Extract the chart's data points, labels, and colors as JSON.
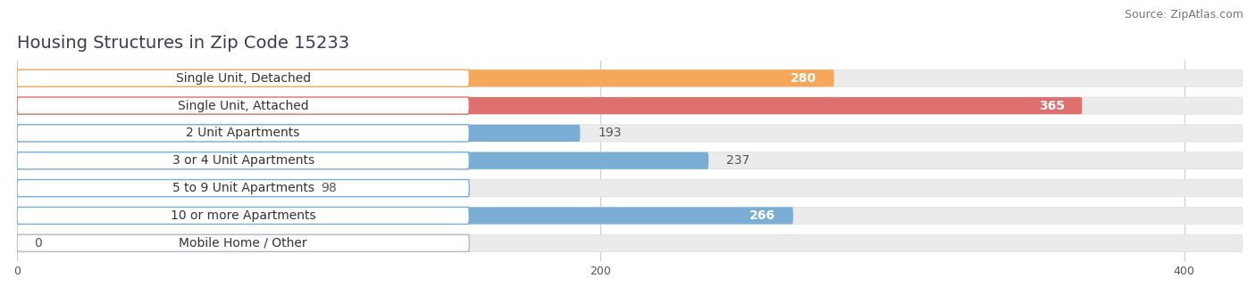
{
  "title": "Housing Structures in Zip Code 15233",
  "source": "Source: ZipAtlas.com",
  "categories": [
    "Single Unit, Detached",
    "Single Unit, Attached",
    "2 Unit Apartments",
    "3 or 4 Unit Apartments",
    "5 to 9 Unit Apartments",
    "10 or more Apartments",
    "Mobile Home / Other"
  ],
  "values": [
    280,
    365,
    193,
    237,
    98,
    266,
    0
  ],
  "bar_colors": [
    "#F5A85A",
    "#E07070",
    "#7BAED4",
    "#7BAED4",
    "#7BAED4",
    "#7BAED4",
    "#C4AECF"
  ],
  "value_inside": [
    true,
    true,
    false,
    false,
    false,
    true,
    false
  ],
  "xlim_max": 420,
  "xticks": [
    0,
    200,
    400
  ],
  "background_color": "#ffffff",
  "bar_bg_color": "#ebebeb",
  "bar_bg_border": "#dddddd",
  "title_fontsize": 14,
  "source_fontsize": 9,
  "label_fontsize": 10,
  "value_fontsize": 10,
  "bar_height": 0.62
}
